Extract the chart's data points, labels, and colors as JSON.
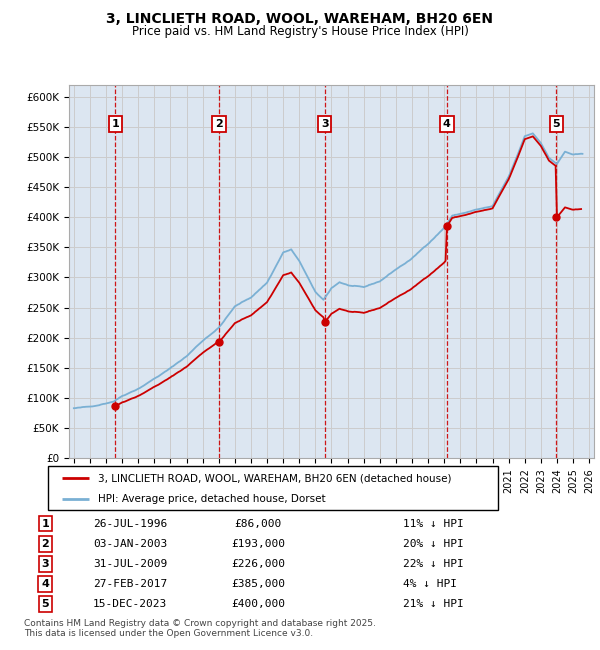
{
  "title": "3, LINCLIETH ROAD, WOOL, WAREHAM, BH20 6EN",
  "subtitle": "Price paid vs. HM Land Registry's House Price Index (HPI)",
  "ylim": [
    0,
    620000
  ],
  "yticks": [
    0,
    50000,
    100000,
    150000,
    200000,
    250000,
    300000,
    350000,
    400000,
    450000,
    500000,
    550000,
    600000
  ],
  "xlim_start": 1993.7,
  "xlim_end": 2026.3,
  "sale_dates": [
    1996.57,
    2003.01,
    2009.58,
    2017.16,
    2023.96
  ],
  "sale_prices": [
    86000,
    193000,
    226000,
    385000,
    400000
  ],
  "sale_labels": [
    "1",
    "2",
    "3",
    "4",
    "5"
  ],
  "sale_info": [
    {
      "label": "1",
      "date": "26-JUL-1996",
      "price": "£86,000",
      "hpi": "11% ↓ HPI"
    },
    {
      "label": "2",
      "date": "03-JAN-2003",
      "price": "£193,000",
      "hpi": "20% ↓ HPI"
    },
    {
      "label": "3",
      "date": "31-JUL-2009",
      "price": "£226,000",
      "hpi": "22% ↓ HPI"
    },
    {
      "label": "4",
      "date": "27-FEB-2017",
      "price": "£385,000",
      "hpi": "4% ↓ HPI"
    },
    {
      "label": "5",
      "date": "15-DEC-2023",
      "price": "£400,000",
      "hpi": "21% ↓ HPI"
    }
  ],
  "legend_entries": [
    {
      "label": "3, LINCLIETH ROAD, WOOL, WAREHAM, BH20 6EN (detached house)",
      "color": "#cc0000"
    },
    {
      "label": "HPI: Average price, detached house, Dorset",
      "color": "#7ab0d4"
    }
  ],
  "footnote": "Contains HM Land Registry data © Crown copyright and database right 2025.\nThis data is licensed under the Open Government Licence v3.0.",
  "grid_color": "#cccccc",
  "bg_color": "#dce6f1",
  "sale_line_color": "#cc0000",
  "hpi_line_color": "#7ab0d4",
  "sale_dot_color": "#cc0000"
}
